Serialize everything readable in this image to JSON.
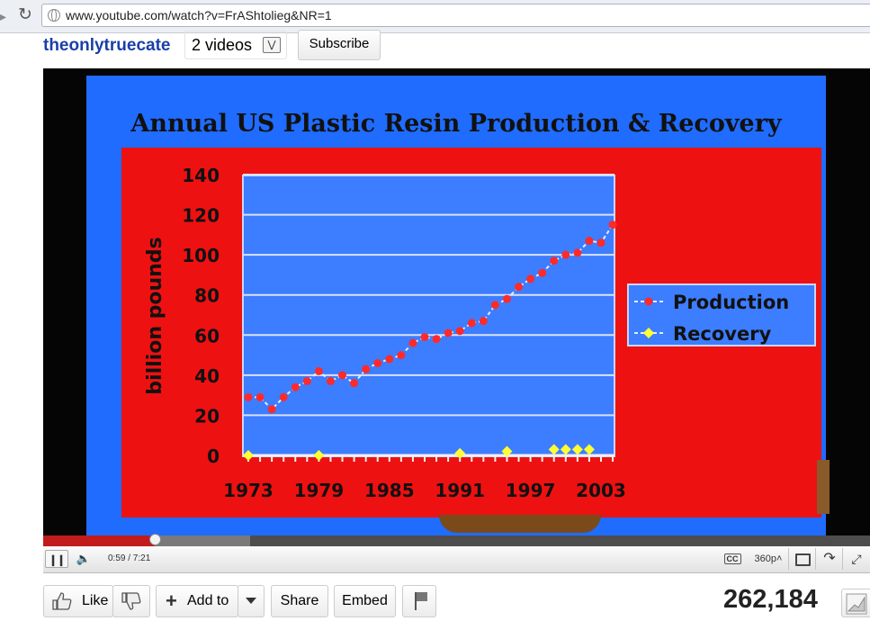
{
  "browser": {
    "url": "www.youtube.com/watch?v=FrAShtolieg&NR=1"
  },
  "channel": {
    "name": "theonlytruecate",
    "videos_label": "2 videos",
    "subscribe_label": "Subscribe"
  },
  "video": {
    "chart_data": {
      "type": "line",
      "title": "Annual US Plastic Resin Production & Recovery",
      "xlabel": "",
      "ylabel": "billion pounds",
      "xlim": [
        1973,
        2003
      ],
      "ylim": [
        0,
        140
      ],
      "yticks": [
        0,
        20,
        40,
        60,
        80,
        100,
        120,
        140
      ],
      "xtick_labels": [
        "1973",
        "1979",
        "1985",
        "1991",
        "1997",
        "2003"
      ],
      "grid": true,
      "legend": "right",
      "series": [
        {
          "name": "Production",
          "color": "#ff2a2a",
          "x": [
            1973,
            1974,
            1975,
            1976,
            1977,
            1978,
            1979,
            1980,
            1981,
            1982,
            1983,
            1984,
            1985,
            1986,
            1987,
            1988,
            1989,
            1990,
            1991,
            1992,
            1993,
            1994,
            1995,
            1996,
            1997,
            1998,
            1999,
            2000,
            2001,
            2002,
            2003,
            2004
          ],
          "y": [
            29,
            29,
            23,
            29,
            34,
            37,
            42,
            37,
            40,
            36,
            43,
            46,
            48,
            50,
            56,
            59,
            58,
            61,
            62,
            66,
            67,
            75,
            78,
            84,
            88,
            91,
            97,
            100,
            101,
            107,
            106,
            115
          ]
        },
        {
          "name": "Recovery",
          "color": "#ffff33",
          "x": [
            1973,
            1979,
            1991,
            1995,
            1999,
            2000,
            2001,
            2002
          ],
          "y": [
            0,
            0,
            1,
            2,
            3,
            3,
            3,
            3
          ]
        }
      ]
    },
    "progress": {
      "played_fraction": 0.135,
      "buffered_fraction": 0.25
    },
    "controls": {
      "time": "0:59 / 7:21",
      "cc_label": "CC",
      "quality": "360p"
    }
  },
  "actions": {
    "like_label": "Like",
    "add_label": "Add to",
    "share_label": "Share",
    "embed_label": "Embed",
    "views": "262,184"
  },
  "icons": {
    "reload": "reload-icon",
    "globe": "globe-icon",
    "thumb_up": "thumb-up-icon",
    "thumb_down": "thumb-down-icon",
    "flag": "flag-icon",
    "stats": "stats-icon"
  }
}
